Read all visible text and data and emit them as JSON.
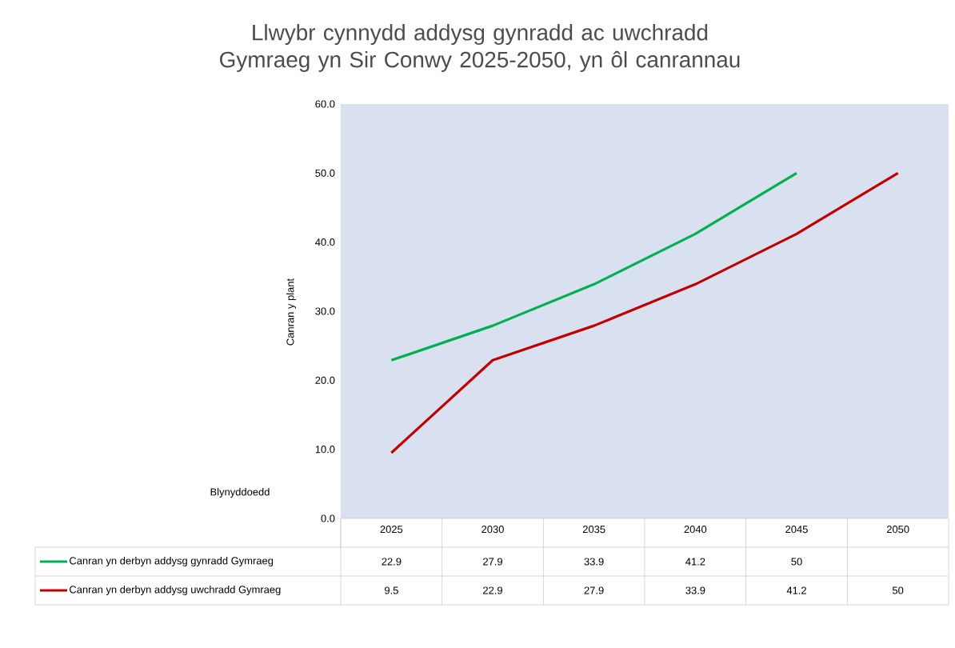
{
  "chart_data": {
    "type": "line",
    "title": "Llwybr cynnydd addysg gynradd ac uwchradd Gymraeg yn Sir Conwy 2025-2050, yn ôl canrannau",
    "xlabel": "Blynyddoedd",
    "ylabel": "Canran y plant",
    "categories": [
      "2025",
      "2030",
      "2035",
      "2040",
      "2045",
      "2050"
    ],
    "series": [
      {
        "name": "Canran yn derbyn addysg gynradd Gymraeg",
        "color": "#00b050",
        "values": [
          22.9,
          27.9,
          33.9,
          41.2,
          50,
          null
        ]
      },
      {
        "name": "Canran yn derbyn addysg uwchradd Gymraeg",
        "color": "#c00000",
        "values": [
          9.5,
          22.9,
          27.9,
          33.9,
          41.2,
          50
        ]
      }
    ],
    "ylim": [
      0,
      60
    ],
    "yticks": [
      {
        "value": 0,
        "label": "0.0"
      },
      {
        "value": 10,
        "label": "10.0"
      },
      {
        "value": 20,
        "label": "20.0"
      },
      {
        "value": 30,
        "label": "30.0"
      },
      {
        "value": 40,
        "label": "40.0"
      },
      {
        "value": 50,
        "label": "50.0"
      },
      {
        "value": 60,
        "label": "60.0"
      }
    ],
    "data_labels": true,
    "legend": "bottom",
    "marker": "none",
    "line_style": "solid"
  }
}
